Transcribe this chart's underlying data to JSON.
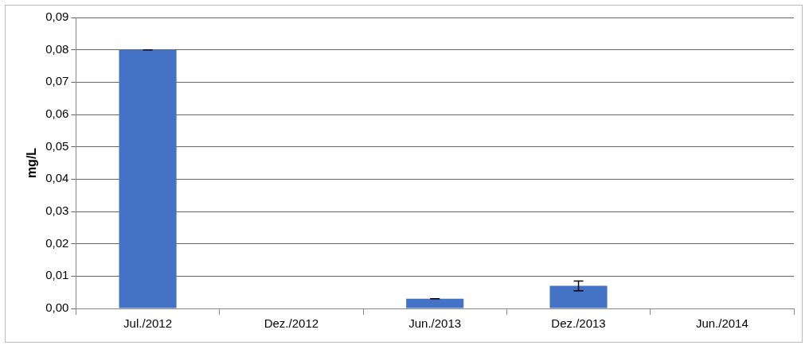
{
  "chart_data": {
    "type": "bar",
    "ylabel": "mg/L",
    "categories": [
      "Jul./2012",
      "Dez./2012",
      "Jun./2013",
      "Dez./2013",
      "Jun./2014"
    ],
    "values": [
      0.08,
      null,
      0.003,
      0.007,
      null
    ],
    "errors": [
      0,
      null,
      0,
      0.0015,
      null
    ],
    "color": "#4472c4",
    "ylim": [
      0,
      0.09
    ],
    "yticks": [
      {
        "value": 0,
        "label": "0,00"
      },
      {
        "value": 0.01,
        "label": "0,01"
      },
      {
        "value": 0.02,
        "label": "0,02"
      },
      {
        "value": 0.03,
        "label": "0,03"
      },
      {
        "value": 0.04,
        "label": "0,04"
      },
      {
        "value": 0.05,
        "label": "0,05"
      },
      {
        "value": 0.06,
        "label": "0,06"
      },
      {
        "value": 0.07,
        "label": "0,07"
      },
      {
        "value": 0.08,
        "label": "0,08"
      },
      {
        "value": 0.09,
        "label": "0,09"
      }
    ],
    "grid": "y",
    "legend": false
  }
}
